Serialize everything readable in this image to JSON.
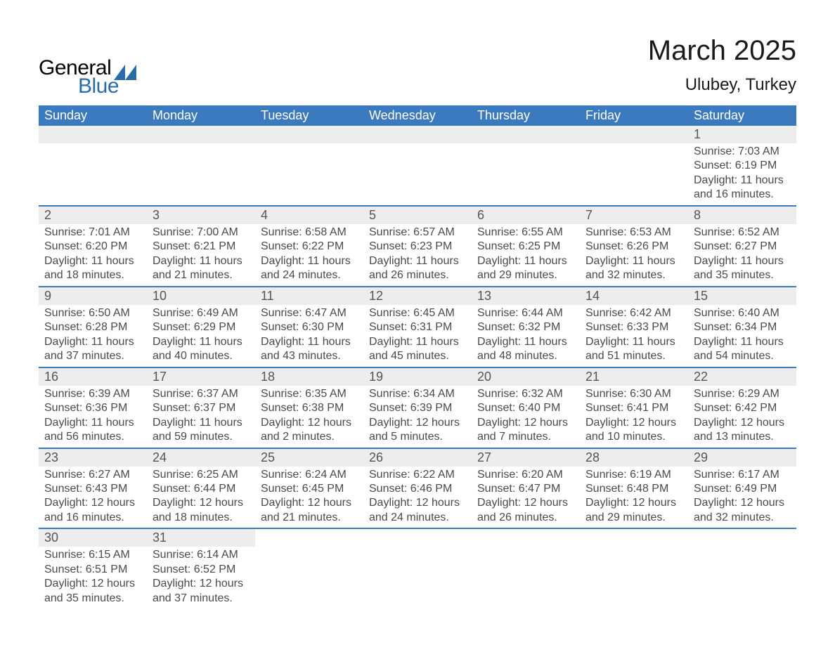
{
  "logo": {
    "general": "General",
    "blue": "Blue",
    "accent_color": "#2a6baa"
  },
  "title": "March 2025",
  "location": "Ulubey, Turkey",
  "colors": {
    "header_bg": "#3c7abf",
    "header_text": "#ffffff",
    "daynum_bg": "#ededed",
    "body_text": "#4a4a4a",
    "row_border": "#3c7abf"
  },
  "day_headers": [
    "Sunday",
    "Monday",
    "Tuesday",
    "Wednesday",
    "Thursday",
    "Friday",
    "Saturday"
  ],
  "weeks": [
    [
      null,
      null,
      null,
      null,
      null,
      null,
      {
        "n": "1",
        "sunrise": "7:03 AM",
        "sunset": "6:19 PM",
        "daylight_a": "Daylight: 11 hours",
        "daylight_b": "and 16 minutes."
      }
    ],
    [
      {
        "n": "2",
        "sunrise": "7:01 AM",
        "sunset": "6:20 PM",
        "daylight_a": "Daylight: 11 hours",
        "daylight_b": "and 18 minutes."
      },
      {
        "n": "3",
        "sunrise": "7:00 AM",
        "sunset": "6:21 PM",
        "daylight_a": "Daylight: 11 hours",
        "daylight_b": "and 21 minutes."
      },
      {
        "n": "4",
        "sunrise": "6:58 AM",
        "sunset": "6:22 PM",
        "daylight_a": "Daylight: 11 hours",
        "daylight_b": "and 24 minutes."
      },
      {
        "n": "5",
        "sunrise": "6:57 AM",
        "sunset": "6:23 PM",
        "daylight_a": "Daylight: 11 hours",
        "daylight_b": "and 26 minutes."
      },
      {
        "n": "6",
        "sunrise": "6:55 AM",
        "sunset": "6:25 PM",
        "daylight_a": "Daylight: 11 hours",
        "daylight_b": "and 29 minutes."
      },
      {
        "n": "7",
        "sunrise": "6:53 AM",
        "sunset": "6:26 PM",
        "daylight_a": "Daylight: 11 hours",
        "daylight_b": "and 32 minutes."
      },
      {
        "n": "8",
        "sunrise": "6:52 AM",
        "sunset": "6:27 PM",
        "daylight_a": "Daylight: 11 hours",
        "daylight_b": "and 35 minutes."
      }
    ],
    [
      {
        "n": "9",
        "sunrise": "6:50 AM",
        "sunset": "6:28 PM",
        "daylight_a": "Daylight: 11 hours",
        "daylight_b": "and 37 minutes."
      },
      {
        "n": "10",
        "sunrise": "6:49 AM",
        "sunset": "6:29 PM",
        "daylight_a": "Daylight: 11 hours",
        "daylight_b": "and 40 minutes."
      },
      {
        "n": "11",
        "sunrise": "6:47 AM",
        "sunset": "6:30 PM",
        "daylight_a": "Daylight: 11 hours",
        "daylight_b": "and 43 minutes."
      },
      {
        "n": "12",
        "sunrise": "6:45 AM",
        "sunset": "6:31 PM",
        "daylight_a": "Daylight: 11 hours",
        "daylight_b": "and 45 minutes."
      },
      {
        "n": "13",
        "sunrise": "6:44 AM",
        "sunset": "6:32 PM",
        "daylight_a": "Daylight: 11 hours",
        "daylight_b": "and 48 minutes."
      },
      {
        "n": "14",
        "sunrise": "6:42 AM",
        "sunset": "6:33 PM",
        "daylight_a": "Daylight: 11 hours",
        "daylight_b": "and 51 minutes."
      },
      {
        "n": "15",
        "sunrise": "6:40 AM",
        "sunset": "6:34 PM",
        "daylight_a": "Daylight: 11 hours",
        "daylight_b": "and 54 minutes."
      }
    ],
    [
      {
        "n": "16",
        "sunrise": "6:39 AM",
        "sunset": "6:36 PM",
        "daylight_a": "Daylight: 11 hours",
        "daylight_b": "and 56 minutes."
      },
      {
        "n": "17",
        "sunrise": "6:37 AM",
        "sunset": "6:37 PM",
        "daylight_a": "Daylight: 11 hours",
        "daylight_b": "and 59 minutes."
      },
      {
        "n": "18",
        "sunrise": "6:35 AM",
        "sunset": "6:38 PM",
        "daylight_a": "Daylight: 12 hours",
        "daylight_b": "and 2 minutes."
      },
      {
        "n": "19",
        "sunrise": "6:34 AM",
        "sunset": "6:39 PM",
        "daylight_a": "Daylight: 12 hours",
        "daylight_b": "and 5 minutes."
      },
      {
        "n": "20",
        "sunrise": "6:32 AM",
        "sunset": "6:40 PM",
        "daylight_a": "Daylight: 12 hours",
        "daylight_b": "and 7 minutes."
      },
      {
        "n": "21",
        "sunrise": "6:30 AM",
        "sunset": "6:41 PM",
        "daylight_a": "Daylight: 12 hours",
        "daylight_b": "and 10 minutes."
      },
      {
        "n": "22",
        "sunrise": "6:29 AM",
        "sunset": "6:42 PM",
        "daylight_a": "Daylight: 12 hours",
        "daylight_b": "and 13 minutes."
      }
    ],
    [
      {
        "n": "23",
        "sunrise": "6:27 AM",
        "sunset": "6:43 PM",
        "daylight_a": "Daylight: 12 hours",
        "daylight_b": "and 16 minutes."
      },
      {
        "n": "24",
        "sunrise": "6:25 AM",
        "sunset": "6:44 PM",
        "daylight_a": "Daylight: 12 hours",
        "daylight_b": "and 18 minutes."
      },
      {
        "n": "25",
        "sunrise": "6:24 AM",
        "sunset": "6:45 PM",
        "daylight_a": "Daylight: 12 hours",
        "daylight_b": "and 21 minutes."
      },
      {
        "n": "26",
        "sunrise": "6:22 AM",
        "sunset": "6:46 PM",
        "daylight_a": "Daylight: 12 hours",
        "daylight_b": "and 24 minutes."
      },
      {
        "n": "27",
        "sunrise": "6:20 AM",
        "sunset": "6:47 PM",
        "daylight_a": "Daylight: 12 hours",
        "daylight_b": "and 26 minutes."
      },
      {
        "n": "28",
        "sunrise": "6:19 AM",
        "sunset": "6:48 PM",
        "daylight_a": "Daylight: 12 hours",
        "daylight_b": "and 29 minutes."
      },
      {
        "n": "29",
        "sunrise": "6:17 AM",
        "sunset": "6:49 PM",
        "daylight_a": "Daylight: 12 hours",
        "daylight_b": "and 32 minutes."
      }
    ],
    [
      {
        "n": "30",
        "sunrise": "6:15 AM",
        "sunset": "6:51 PM",
        "daylight_a": "Daylight: 12 hours",
        "daylight_b": "and 35 minutes."
      },
      {
        "n": "31",
        "sunrise": "6:14 AM",
        "sunset": "6:52 PM",
        "daylight_a": "Daylight: 12 hours",
        "daylight_b": "and 37 minutes."
      },
      null,
      null,
      null,
      null,
      null
    ]
  ],
  "labels": {
    "sunrise_prefix": "Sunrise: ",
    "sunset_prefix": "Sunset: "
  }
}
